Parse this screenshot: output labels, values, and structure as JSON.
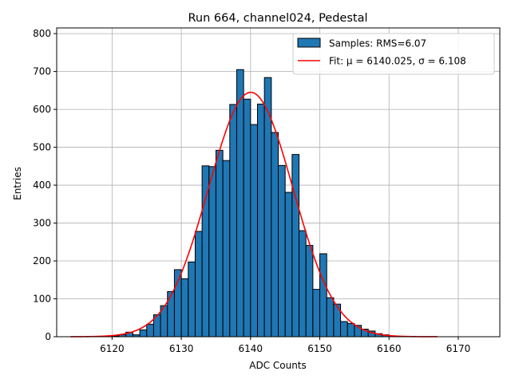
{
  "chart_data": {
    "type": "bar",
    "title": "Run 664, channel024, Pedestal",
    "xlabel": "ADC Counts",
    "ylabel": "Entries",
    "xlim": [
      6112,
      6176
    ],
    "ylim": [
      0,
      815
    ],
    "xticks": [
      6120,
      6130,
      6140,
      6150,
      6160,
      6170
    ],
    "yticks": [
      0,
      100,
      200,
      300,
      400,
      500,
      600,
      700,
      800
    ],
    "grid": true,
    "legend_position": "top-right",
    "bin_width": 1,
    "series": [
      {
        "name": "Samples: RMS=6.07",
        "kind": "histogram",
        "color": "#1f77b4",
        "edgecolor": "#000000",
        "bin_starts": [
          6120,
          6121,
          6122,
          6123,
          6124,
          6125,
          6126,
          6127,
          6128,
          6129,
          6130,
          6131,
          6132,
          6133,
          6134,
          6135,
          6136,
          6137,
          6138,
          6139,
          6140,
          6141,
          6142,
          6143,
          6144,
          6145,
          6146,
          6147,
          6148,
          6149,
          6150,
          6151,
          6152,
          6153,
          6154,
          6155,
          6156,
          6157,
          6158,
          6159
        ],
        "values": [
          2,
          5,
          12,
          5,
          18,
          33,
          58,
          82,
          119,
          177,
          153,
          197,
          278,
          451,
          449,
          492,
          465,
          613,
          705,
          627,
          560,
          614,
          684,
          539,
          452,
          381,
          481,
          280,
          241,
          125,
          219,
          103,
          86,
          40,
          35,
          30,
          20,
          15,
          8,
          5
        ]
      },
      {
        "name": "Fit: μ = 6140.025, σ = 6.108",
        "kind": "gaussian",
        "color": "#ff0000",
        "mu": 6140.025,
        "sigma": 6.108,
        "amplitude": 645,
        "x_range": [
          6114,
          6167
        ]
      }
    ]
  }
}
